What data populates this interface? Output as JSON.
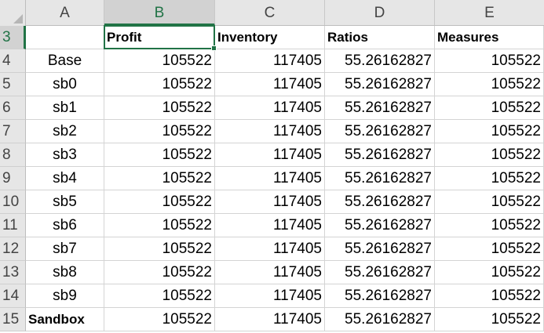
{
  "columns": [
    "A",
    "B",
    "C",
    "D",
    "E"
  ],
  "header_row": {
    "row_label": "3",
    "cells": [
      "",
      "Profit",
      "Inventory",
      "Ratios",
      "Measures"
    ]
  },
  "rows": [
    {
      "row_label": "4",
      "name": "Base",
      "profit": "105522",
      "inventory": "117405",
      "ratios": "55.26162827",
      "measures": "105522"
    },
    {
      "row_label": "5",
      "name": "sb0",
      "profit": "105522",
      "inventory": "117405",
      "ratios": "55.26162827",
      "measures": "105522"
    },
    {
      "row_label": "6",
      "name": "sb1",
      "profit": "105522",
      "inventory": "117405",
      "ratios": "55.26162827",
      "measures": "105522"
    },
    {
      "row_label": "7",
      "name": "sb2",
      "profit": "105522",
      "inventory": "117405",
      "ratios": "55.26162827",
      "measures": "105522"
    },
    {
      "row_label": "8",
      "name": "sb3",
      "profit": "105522",
      "inventory": "117405",
      "ratios": "55.26162827",
      "measures": "105522"
    },
    {
      "row_label": "9",
      "name": "sb4",
      "profit": "105522",
      "inventory": "117405",
      "ratios": "55.26162827",
      "measures": "105522"
    },
    {
      "row_label": "10",
      "name": "sb5",
      "profit": "105522",
      "inventory": "117405",
      "ratios": "55.26162827",
      "measures": "105522"
    },
    {
      "row_label": "11",
      "name": "sb6",
      "profit": "105522",
      "inventory": "117405",
      "ratios": "55.26162827",
      "measures": "105522"
    },
    {
      "row_label": "12",
      "name": "sb7",
      "profit": "105522",
      "inventory": "117405",
      "ratios": "55.26162827",
      "measures": "105522"
    },
    {
      "row_label": "13",
      "name": "sb8",
      "profit": "105522",
      "inventory": "117405",
      "ratios": "55.26162827",
      "measures": "105522"
    },
    {
      "row_label": "14",
      "name": "sb9",
      "profit": "105522",
      "inventory": "117405",
      "ratios": "55.26162827",
      "measures": "105522"
    },
    {
      "row_label": "15",
      "name": "Sandbox",
      "profit": "105522",
      "inventory": "117405",
      "ratios": "55.26162827",
      "measures": "105522"
    }
  ],
  "selection": {
    "active_cell": "B3",
    "accent_color": "#217346"
  }
}
